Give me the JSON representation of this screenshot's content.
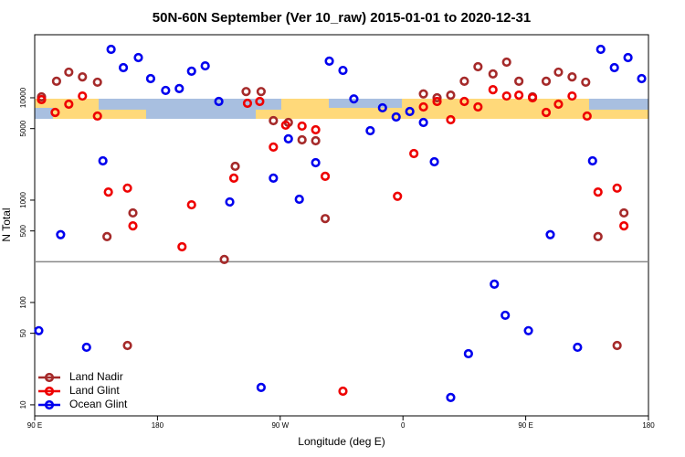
{
  "chart_data": {
    "type": "scatter",
    "title": "50N-60N September (Ver 10_raw)   2015-01-01 to 2020-12-31",
    "x_label": "Longitude (deg E)",
    "y_label": "N Total",
    "log_y": true,
    "legend": "bottomleft",
    "divider": 250,
    "xlim": [
      90,
      540
    ],
    "xticks": [
      {
        "value": 90,
        "label": "90 E"
      },
      180,
      {
        "value": 270,
        "label": "90 W"
      },
      {
        "value": 360,
        "label": "0"
      },
      {
        "value": 450,
        "label": "90 E"
      },
      {
        "value": 540,
        "label": "180"
      }
    ],
    "ylim": [
      7.8,
      41300
    ],
    "yticks": [
      10,
      50,
      100,
      500,
      1000,
      5000,
      10000
    ],
    "series": [
      {
        "name": "Land Nadir",
        "color": "#a52a2a",
        "x": [
          95,
          106,
          115,
          125,
          136,
          143,
          162,
          158,
          229,
          237,
          245,
          256,
          265,
          276,
          286,
          296,
          303,
          375,
          385,
          395,
          405,
          415,
          426,
          436,
          445,
          455,
          465,
          474,
          484,
          494,
          503,
          522,
          517
        ],
        "values": [
          10200,
          14500,
          17800,
          16000,
          14200,
          440,
          750,
          38,
          263,
          2140,
          11500,
          11500,
          5980,
          5740,
          3880,
          3800,
          660,
          10900,
          10000,
          10600,
          14500,
          20100,
          17100,
          22300,
          14500,
          10200,
          14500,
          17800,
          16000,
          14200,
          440,
          750,
          38
        ]
      },
      {
        "name": "Land Glint",
        "color": "#ee0000",
        "x": [
          95,
          105,
          115,
          125,
          136,
          144,
          158,
          162,
          198,
          205,
          236,
          246,
          255,
          265,
          274,
          286,
          296,
          303,
          316,
          356,
          368,
          375,
          385,
          395,
          405,
          415,
          426,
          436,
          445,
          455,
          465,
          474,
          484,
          495,
          503,
          517,
          522
        ],
        "values": [
          9600,
          7190,
          8660,
          10400,
          6630,
          1200,
          1310,
          560,
          350,
          900,
          1640,
          8840,
          9210,
          3300,
          5400,
          5290,
          4870,
          1710,
          13.6,
          1090,
          2850,
          8140,
          9210,
          6100,
          9210,
          8140,
          12000,
          10400,
          10600,
          10000,
          7190,
          8660,
          10400,
          6630,
          1200,
          1310,
          560
        ]
      },
      {
        "name": "Ocean Glint",
        "color": "#0000ee",
        "x": [
          93,
          109,
          128,
          140,
          146,
          155,
          166,
          175,
          186,
          196,
          205,
          215,
          225,
          233,
          256,
          265,
          276,
          284,
          296,
          306,
          316,
          324,
          336,
          345,
          355,
          365,
          375,
          383,
          395,
          408,
          427,
          435,
          452,
          468,
          488,
          499,
          505,
          515,
          525,
          535
        ],
        "values": [
          53,
          460,
          36.5,
          2420,
          29700,
          19700,
          24700,
          15400,
          11800,
          12300,
          18200,
          20500,
          9210,
          960,
          14.8,
          1640,
          3970,
          1020,
          2320,
          22800,
          18500,
          9750,
          4770,
          7980,
          6490,
          7340,
          5740,
          2370,
          11.8,
          31.6,
          151,
          75,
          53,
          460,
          36.5,
          2420,
          29700,
          19700,
          24700,
          15400
        ]
      }
    ]
  }
}
